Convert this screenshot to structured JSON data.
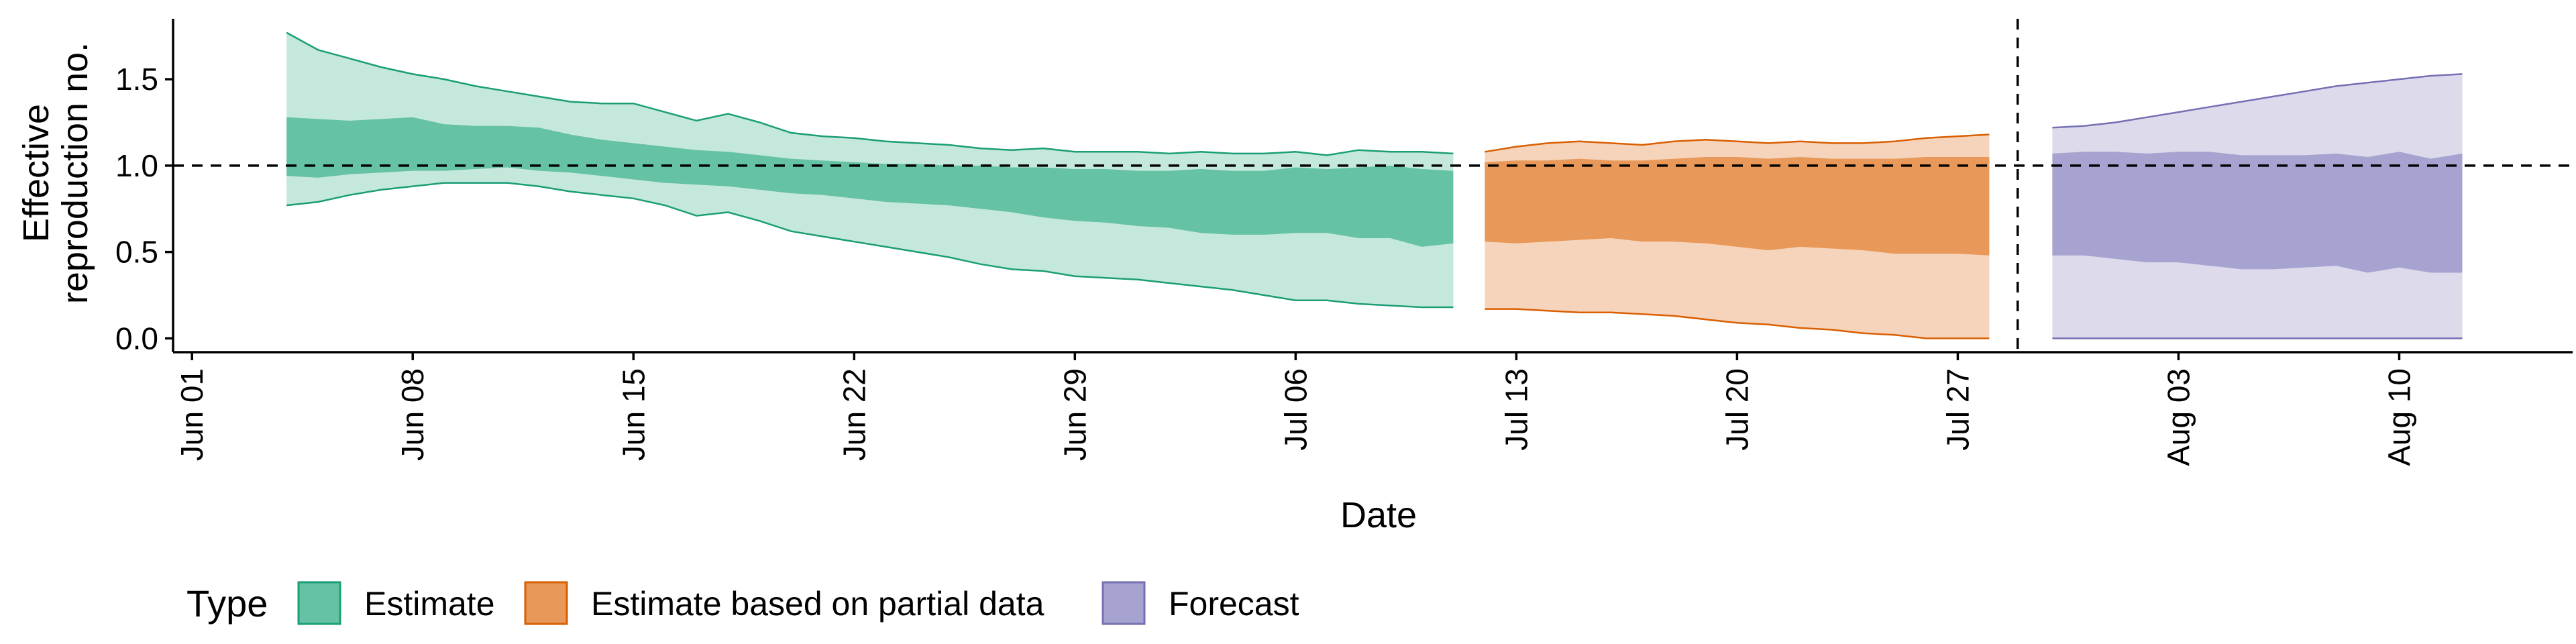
{
  "chart_data": {
    "type": "area",
    "xlabel": "Date",
    "ylabel_lines": [
      "Effective",
      "reproduction no."
    ],
    "x_ticks": [
      "Jun 01",
      "Jun 08",
      "Jun 15",
      "Jun 22",
      "Jun 29",
      "Jul 06",
      "Jul 13",
      "Jul 20",
      "Jul 27",
      "Aug 03",
      "Aug 10"
    ],
    "x_tick_days": [
      0,
      7,
      14,
      21,
      28,
      35,
      42,
      49,
      56,
      63,
      70
    ],
    "x_range_days": [
      -0.6,
      75.5
    ],
    "y_ticks": [
      "0.0",
      "0.5",
      "1.0",
      "1.5"
    ],
    "y_tick_values": [
      0,
      0.5,
      1.0,
      1.5
    ],
    "ylim": [
      -0.08,
      1.85
    ],
    "hline_y": 1.0,
    "vline_day": 57.9,
    "legend_title": "Type",
    "colors": {
      "estimate_fill": "#66C2A5",
      "estimate_outer": "#C5E8DC",
      "estimate_line": "#1B9E77",
      "partial_fill": "#E8995A",
      "partial_outer": "#F6D4BB",
      "partial_line": "#D95F02",
      "forecast_fill": "#A7A3D1",
      "forecast_outer": "#DCDAEB",
      "forecast_line": "#7570B3"
    },
    "series": [
      {
        "name": "Estimate",
        "key": "estimate",
        "x_days": [
          3,
          4,
          5,
          6,
          7,
          8,
          9,
          10,
          11,
          12,
          13,
          14,
          15,
          16,
          17,
          18,
          19,
          20,
          21,
          22,
          23,
          24,
          25,
          26,
          27,
          28,
          29,
          30,
          31,
          32,
          33,
          34,
          35,
          36,
          37,
          38,
          39,
          40
        ],
        "upper90": [
          1.77,
          1.67,
          1.62,
          1.57,
          1.53,
          1.5,
          1.46,
          1.43,
          1.4,
          1.37,
          1.36,
          1.36,
          1.31,
          1.26,
          1.3,
          1.25,
          1.19,
          1.17,
          1.16,
          1.14,
          1.13,
          1.12,
          1.1,
          1.09,
          1.1,
          1.08,
          1.08,
          1.08,
          1.07,
          1.08,
          1.07,
          1.07,
          1.08,
          1.06,
          1.09,
          1.08,
          1.08,
          1.07
        ],
        "upper50": [
          1.28,
          1.27,
          1.26,
          1.27,
          1.28,
          1.24,
          1.23,
          1.23,
          1.22,
          1.18,
          1.15,
          1.13,
          1.11,
          1.09,
          1.08,
          1.06,
          1.04,
          1.03,
          1.02,
          1.01,
          1.01,
          1.0,
          1.0,
          0.99,
          0.99,
          0.98,
          0.98,
          0.97,
          0.97,
          0.98,
          0.97,
          0.97,
          0.99,
          0.98,
          0.99,
          1.0,
          0.98,
          0.97
        ],
        "lower50": [
          0.94,
          0.93,
          0.95,
          0.96,
          0.97,
          0.97,
          0.98,
          0.99,
          0.97,
          0.96,
          0.94,
          0.92,
          0.9,
          0.89,
          0.88,
          0.86,
          0.84,
          0.83,
          0.81,
          0.79,
          0.78,
          0.77,
          0.75,
          0.73,
          0.7,
          0.68,
          0.67,
          0.65,
          0.64,
          0.61,
          0.6,
          0.6,
          0.61,
          0.61,
          0.58,
          0.58,
          0.53,
          0.55
        ],
        "lower90": [
          0.77,
          0.79,
          0.83,
          0.86,
          0.88,
          0.9,
          0.9,
          0.9,
          0.88,
          0.85,
          0.83,
          0.81,
          0.77,
          0.71,
          0.73,
          0.68,
          0.62,
          0.59,
          0.56,
          0.53,
          0.5,
          0.47,
          0.43,
          0.4,
          0.39,
          0.36,
          0.35,
          0.34,
          0.32,
          0.3,
          0.28,
          0.25,
          0.22,
          0.22,
          0.2,
          0.19,
          0.18,
          0.18
        ]
      },
      {
        "name": "Estimate based on partial data",
        "key": "partial",
        "x_days": [
          41,
          42,
          43,
          44,
          45,
          46,
          47,
          48,
          49,
          50,
          51,
          52,
          53,
          54,
          55,
          56,
          57
        ],
        "upper90": [
          1.08,
          1.11,
          1.13,
          1.14,
          1.13,
          1.12,
          1.14,
          1.15,
          1.14,
          1.13,
          1.14,
          1.13,
          1.13,
          1.14,
          1.16,
          1.17,
          1.18
        ],
        "upper50": [
          1.02,
          1.03,
          1.03,
          1.04,
          1.03,
          1.03,
          1.04,
          1.05,
          1.05,
          1.04,
          1.05,
          1.04,
          1.04,
          1.04,
          1.05,
          1.05,
          1.05
        ],
        "lower50": [
          0.56,
          0.55,
          0.56,
          0.57,
          0.58,
          0.56,
          0.56,
          0.55,
          0.53,
          0.51,
          0.53,
          0.52,
          0.51,
          0.49,
          0.49,
          0.49,
          0.48
        ],
        "lower90": [
          0.17,
          0.17,
          0.16,
          0.15,
          0.15,
          0.14,
          0.13,
          0.11,
          0.09,
          0.08,
          0.06,
          0.05,
          0.03,
          0.02,
          0.0,
          0.0,
          0.0
        ]
      },
      {
        "name": "Forecast",
        "key": "forecast",
        "x_days": [
          59,
          60,
          61,
          62,
          63,
          64,
          65,
          66,
          67,
          68,
          69,
          70,
          71,
          72
        ],
        "upper90": [
          1.22,
          1.23,
          1.25,
          1.28,
          1.31,
          1.34,
          1.37,
          1.4,
          1.43,
          1.46,
          1.48,
          1.5,
          1.52,
          1.53
        ],
        "upper50": [
          1.07,
          1.08,
          1.08,
          1.07,
          1.08,
          1.08,
          1.06,
          1.06,
          1.06,
          1.07,
          1.05,
          1.08,
          1.04,
          1.07
        ],
        "lower50": [
          0.48,
          0.48,
          0.46,
          0.44,
          0.44,
          0.42,
          0.4,
          0.4,
          0.41,
          0.42,
          0.38,
          0.41,
          0.38,
          0.38
        ],
        "lower90": [
          0.0,
          0.0,
          0.0,
          0.0,
          0.0,
          0.0,
          0.0,
          0.0,
          0.0,
          0.0,
          0.0,
          0.0,
          0.0,
          0.0
        ]
      }
    ]
  }
}
